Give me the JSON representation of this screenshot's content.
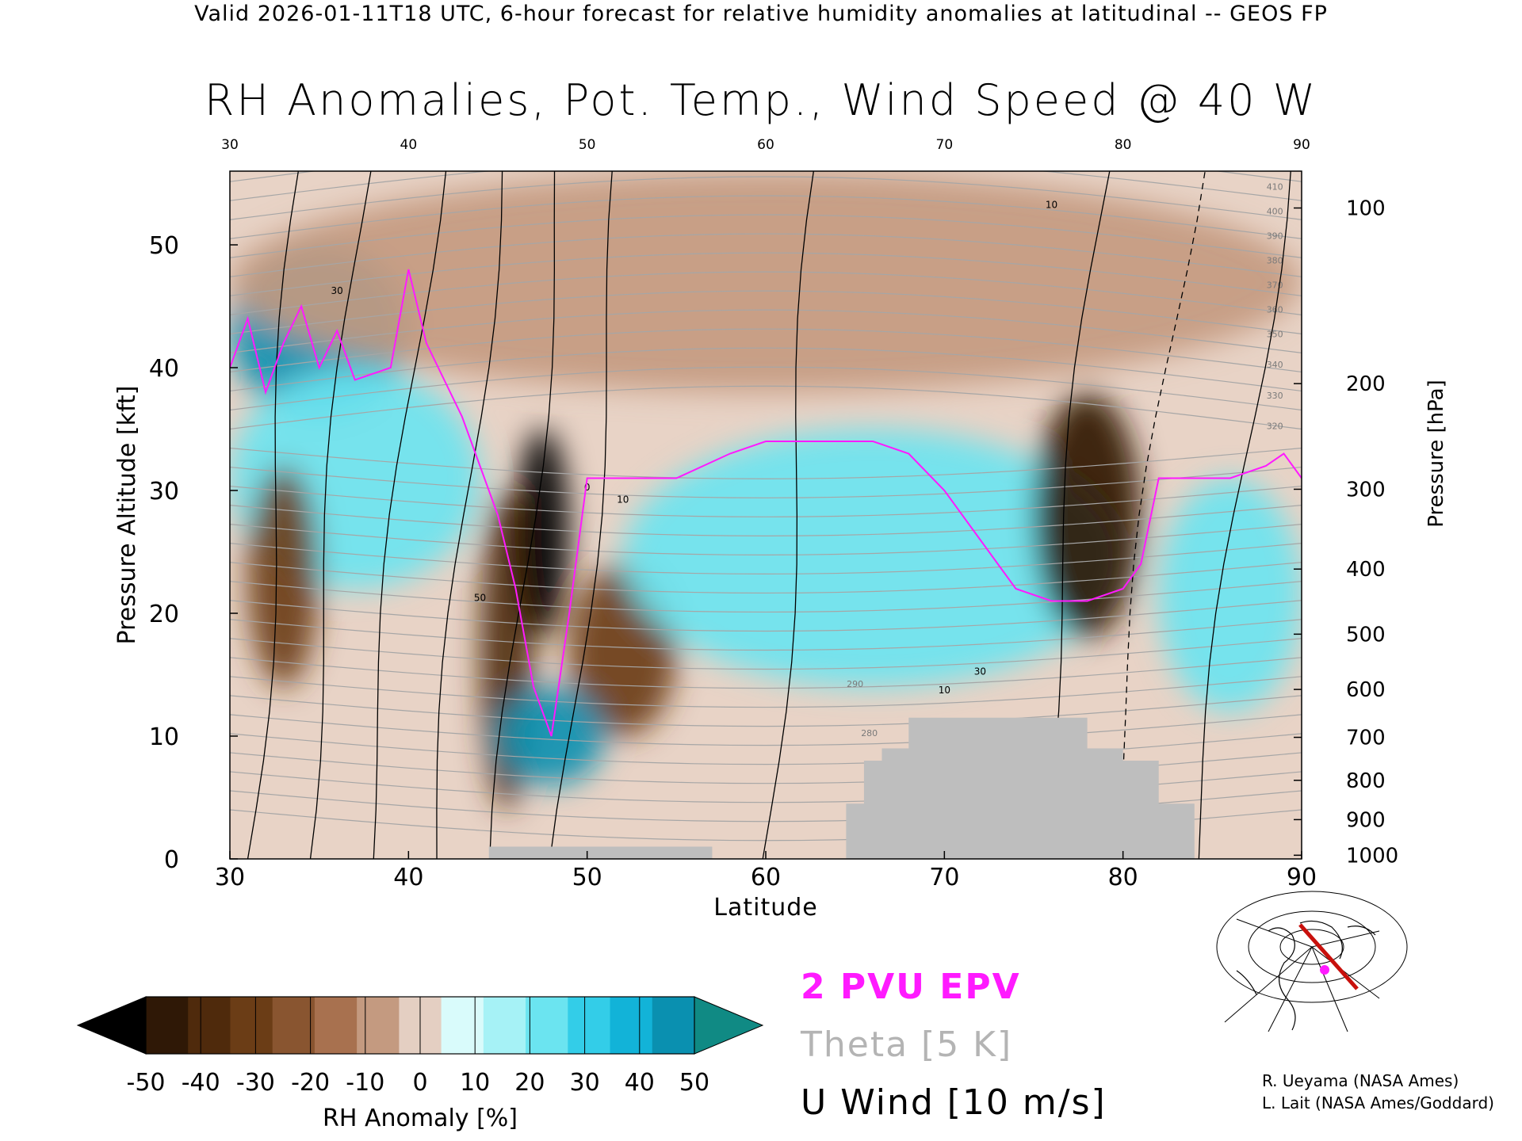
{
  "header": {
    "text": "Valid 2026-01-11T18 UTC, 6-hour forecast for relative humidity anomalies at latitudinal -- GEOS FP"
  },
  "chart_data": {
    "type": "heatmap",
    "title": "RH Anomalies, Pot. Temp., Wind Speed @ 40 W",
    "xlabel": "Latitude",
    "ylabel_left": "Pressure Altitude [kft]",
    "ylabel_right": "Pressure [hPa]",
    "xlim": [
      30,
      90
    ],
    "ylim": [
      0,
      56
    ],
    "x_ticks": [
      "30",
      "40",
      "50",
      "60",
      "70",
      "80",
      "90"
    ],
    "y_ticks_left": [
      "0",
      "10",
      "20",
      "30",
      "40",
      "50"
    ],
    "pressure_ticks": [
      {
        "label": "100",
        "kft": 53.0
      },
      {
        "label": "200",
        "kft": 38.7
      },
      {
        "label": "300",
        "kft": 30.1
      },
      {
        "label": "400",
        "kft": 23.6
      },
      {
        "label": "500",
        "kft": 18.3
      },
      {
        "label": "600",
        "kft": 13.8
      },
      {
        "label": "700",
        "kft": 9.9
      },
      {
        "label": "800",
        "kft": 6.4
      },
      {
        "label": "900",
        "kft": 3.2
      },
      {
        "label": "1000",
        "kft": 0.3
      }
    ],
    "colorbar": {
      "label": "RH Anomaly [%]",
      "ticks": [
        "-50",
        "-40",
        "-30",
        "-20",
        "-10",
        "0",
        "10",
        "20",
        "30",
        "40",
        "50"
      ],
      "colors": [
        "#2f1806",
        "#4f2a0c",
        "#6b3d16",
        "#895530",
        "#a8714f",
        "#c49a80",
        "#e4cfc2",
        "#d9fbfb",
        "#a6f2f6",
        "#6be4f0",
        "#33cde8",
        "#12b3d8",
        "#0a90b0"
      ],
      "low_extend_color": "#000000",
      "high_extend_color": "#108a84"
    },
    "legend": [
      {
        "name": "2 PVU EPV",
        "color": "#ff1aff"
      },
      {
        "name": "Theta [5 K]",
        "color": "#b4b4b4"
      },
      {
        "name": "U Wind [10 m/s]",
        "color": "#000000"
      }
    ],
    "theta_labels": [
      "410",
      "400",
      "390",
      "380",
      "370",
      "360",
      "350",
      "340",
      "330",
      "320",
      "290",
      "280"
    ],
    "wind_labels": [
      "30",
      "50",
      "10",
      "0",
      "10",
      "30",
      "10"
    ],
    "anomaly_regions": [
      {
        "lat": [
          30,
          40
        ],
        "kft": [
          36,
          50
        ],
        "value": 45
      },
      {
        "lat": [
          30,
          44
        ],
        "kft": [
          22,
          40
        ],
        "value": 20
      },
      {
        "lat": [
          31,
          35
        ],
        "kft": [
          14,
          32
        ],
        "value": -30
      },
      {
        "lat": [
          44,
          47
        ],
        "kft": [
          4,
          30
        ],
        "value": -40
      },
      {
        "lat": [
          46,
          49
        ],
        "kft": [
          18,
          35
        ],
        "value": -60
      },
      {
        "lat": [
          49,
          55
        ],
        "kft": [
          10,
          24
        ],
        "value": -30
      },
      {
        "lat": [
          45,
          51
        ],
        "kft": [
          6,
          14
        ],
        "value": 45
      },
      {
        "lat": [
          52,
          80
        ],
        "kft": [
          14,
          35
        ],
        "value": 20
      },
      {
        "lat": [
          75,
          81
        ],
        "kft": [
          18,
          38
        ],
        "value": -45
      },
      {
        "lat": [
          82,
          90
        ],
        "kft": [
          12,
          31
        ],
        "value": 25
      },
      {
        "lat": [
          30,
          90
        ],
        "kft": [
          38,
          56
        ],
        "value": -10
      }
    ],
    "terrain": [
      {
        "lat": [
          44.5,
          57
        ],
        "kft": [
          0,
          1.0
        ]
      },
      {
        "lat": [
          64.5,
          84
        ],
        "kft": [
          0,
          4.5
        ]
      },
      {
        "lat": [
          65.5,
          82
        ],
        "kft": [
          0,
          8
        ]
      },
      {
        "lat": [
          66.5,
          80
        ],
        "kft": [
          0,
          9
        ]
      },
      {
        "lat": [
          68,
          78
        ],
        "kft": [
          0,
          11.5
        ]
      }
    ],
    "epv_2pvu_line": [
      [
        30,
        40
      ],
      [
        31,
        44
      ],
      [
        32,
        38
      ],
      [
        33,
        42
      ],
      [
        34,
        45
      ],
      [
        35,
        40
      ],
      [
        36,
        43
      ],
      [
        37,
        39
      ],
      [
        39,
        40
      ],
      [
        40,
        48
      ],
      [
        41,
        42
      ],
      [
        42,
        39
      ],
      [
        43,
        36
      ],
      [
        44,
        32
      ],
      [
        45,
        28
      ],
      [
        46,
        22
      ],
      [
        47,
        14
      ],
      [
        48,
        10
      ],
      [
        49,
        20
      ],
      [
        50,
        31
      ],
      [
        52,
        31
      ],
      [
        55,
        31
      ],
      [
        58,
        33
      ],
      [
        60,
        34
      ],
      [
        63,
        34
      ],
      [
        66,
        34
      ],
      [
        68,
        33
      ],
      [
        70,
        30
      ],
      [
        72,
        26
      ],
      [
        73,
        24
      ],
      [
        74,
        22
      ],
      [
        76,
        21
      ],
      [
        78,
        21
      ],
      [
        80,
        22
      ],
      [
        81,
        24
      ],
      [
        82,
        31
      ],
      [
        84,
        31
      ],
      [
        86,
        31
      ],
      [
        88,
        32
      ],
      [
        89,
        33
      ],
      [
        90,
        31
      ]
    ]
  },
  "credits": {
    "line1": "R. Ueyama (NASA Ames)",
    "line2": "L. Lait (NASA Ames/Goddard)"
  }
}
